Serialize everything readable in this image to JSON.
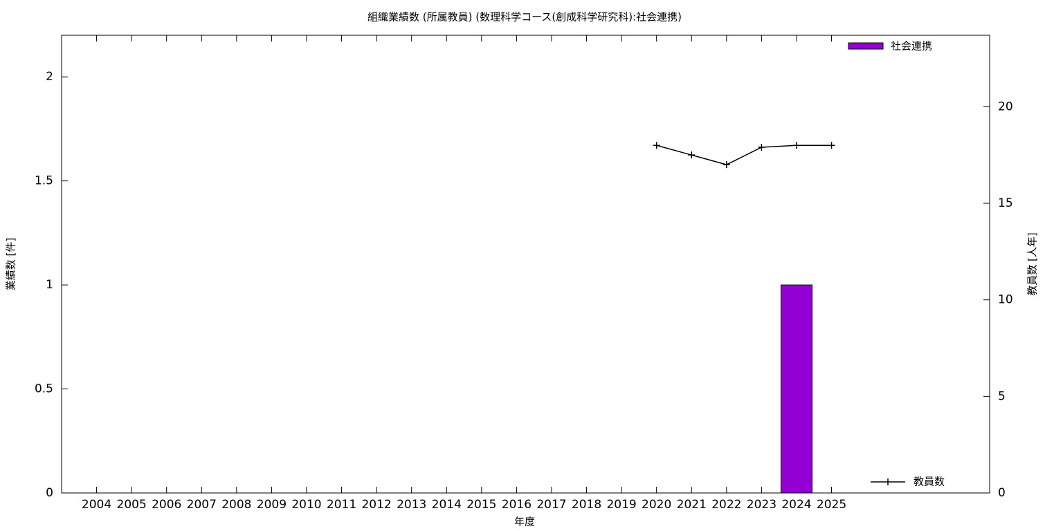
{
  "chart_data": {
    "type": "bar+line",
    "title": "組織業績数 (所属教員) (数理科学コース(創成科学研究科):社会連携)",
    "x_label": "年度",
    "y_label": "業績数 [件]",
    "y2_label": "教員数 [人年]",
    "categories": [
      "2004",
      "2005",
      "2006",
      "2007",
      "2008",
      "2009",
      "2010",
      "2011",
      "2012",
      "2013",
      "2014",
      "2015",
      "2016",
      "2017",
      "2018",
      "2019",
      "2020",
      "2021",
      "2022",
      "2023",
      "2024",
      "2025"
    ],
    "series": [
      {
        "name": "社会連携",
        "type": "bar",
        "color": "#9400d3",
        "values": [
          0,
          0,
          0,
          0,
          0,
          0,
          0,
          0,
          0,
          0,
          0,
          0,
          0,
          0,
          0,
          0,
          0,
          0,
          0,
          0,
          1,
          0
        ]
      },
      {
        "name": "教員数",
        "type": "line",
        "axis": "y2",
        "color": "#000000",
        "values": [
          null,
          null,
          null,
          null,
          null,
          null,
          null,
          null,
          null,
          null,
          null,
          null,
          null,
          null,
          null,
          null,
          18,
          17.5,
          17,
          17.9,
          18,
          18
        ]
      }
    ],
    "ylim": [
      0,
      2.2
    ],
    "yticks": [
      0,
      0.5,
      1,
      1.5,
      2
    ],
    "y2lim": [
      0,
      23.7
    ],
    "y2ticks": [
      0,
      5,
      10,
      15,
      20
    ]
  }
}
